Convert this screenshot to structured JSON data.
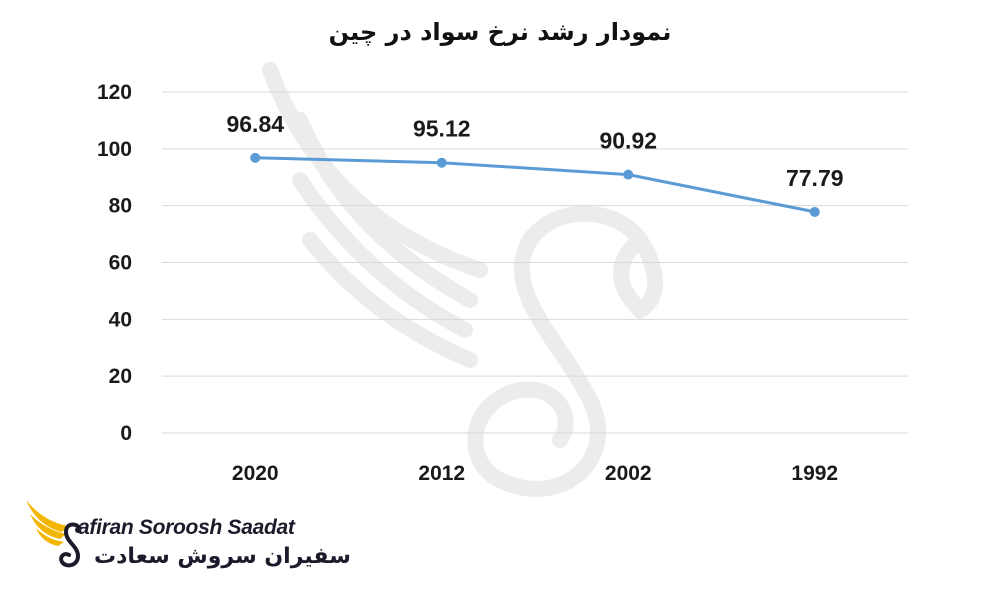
{
  "chart_data": {
    "type": "line",
    "title": "نمودار رشد نرخ سواد در چین",
    "categories": [
      "2020",
      "2012",
      "2002",
      "1992"
    ],
    "series": [
      {
        "values": [
          96.84,
          95.12,
          90.92,
          77.79
        ]
      }
    ],
    "data_labels": [
      "96.84",
      "95.12",
      "90.92",
      "77.79"
    ],
    "y_ticks": [
      "0",
      "20",
      "40",
      "60",
      "80",
      "100",
      "120"
    ],
    "ylim": [
      0,
      120
    ],
    "grid": true,
    "legend": "none",
    "line_color": "#5b9bd5",
    "grid_color": "#d9d9d9"
  },
  "watermark": {
    "icon": "swan-wing-icon",
    "color": "#eeeeee"
  },
  "logo": {
    "icon": "golden-wing-swan-icon",
    "text_en": "afiran Soroosh Saadat",
    "text_fa": "سفیران سروش سعادت",
    "accent_color": "#f2b705",
    "text_color": "#1b1b2b"
  }
}
